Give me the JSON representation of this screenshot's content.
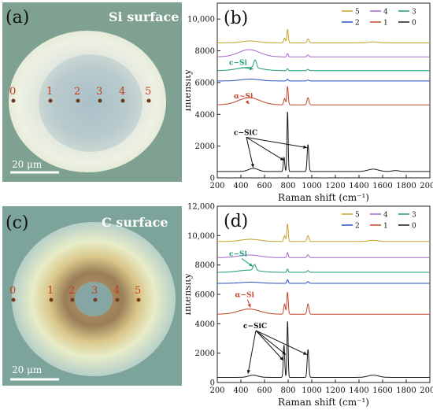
{
  "panels": {
    "a": {
      "label": "(a)",
      "title": "Si surface",
      "scale": "20 μm",
      "points": [
        "0",
        "1",
        "2",
        "3",
        "4",
        "5"
      ]
    },
    "c": {
      "label": "(c)",
      "title": "C surface",
      "scale": "20 μm",
      "points": [
        "0",
        "1",
        "2",
        "3",
        "4",
        "5"
      ]
    }
  },
  "colors": {
    "s5": "#c8a22a",
    "s4": "#a467c9",
    "s3": "#1f9e79",
    "s2": "#2a50c4",
    "s1": "#c2452a",
    "s0": "#1a1a1a"
  },
  "chart_data": [
    {
      "panel": "(b)",
      "type": "line",
      "xlabel": "Raman shift (cm⁻¹)",
      "ylabel": "Intensity",
      "xlim": [
        200,
        2000
      ],
      "ylim": [
        0,
        11000
      ],
      "xticks": [
        200,
        400,
        600,
        800,
        1000,
        1200,
        1400,
        1600,
        1800,
        2000
      ],
      "yticks": [
        0,
        2000,
        4000,
        6000,
        8000,
        10000
      ],
      "ytick_labels": [
        "0",
        "2000",
        "4000",
        "6000",
        "8000",
        "10,000"
      ],
      "legend": [
        "5",
        "4",
        "3",
        "2",
        "1",
        "0"
      ],
      "legend_location": "top-right",
      "annotations": [
        {
          "text": "c−Si",
          "x": 300,
          "y": 7100,
          "color": "#1f9e79",
          "arrow_to": [
            505,
            6850
          ]
        },
        {
          "text": "α−Si",
          "x": 340,
          "y": 5000,
          "color": "#c2452a",
          "arrow_to": [
            470,
            4650
          ]
        },
        {
          "text": "c−SiC",
          "x": 340,
          "y": 2700,
          "color": "#111111",
          "arrows_to": [
            [
              505,
              650
            ],
            [
              765,
              1100
            ],
            [
              960,
              1900
            ]
          ]
        }
      ],
      "series": [
        {
          "name": "5",
          "color": "#c8a22a",
          "baseline": 8500,
          "peaks": [
            [
              480,
              120,
              70
            ],
            [
              770,
              300,
              7
            ],
            [
              795,
              850,
              6
            ],
            [
              968,
              250,
              8
            ],
            [
              1520,
              60,
              40
            ]
          ]
        },
        {
          "name": "4",
          "color": "#a467c9",
          "baseline": 7620,
          "peaks": [
            [
              470,
              450,
              90
            ],
            [
              795,
              200,
              6
            ],
            [
              968,
              120,
              8
            ]
          ]
        },
        {
          "name": "3",
          "color": "#1f9e79",
          "baseline": 6750,
          "peaks": [
            [
              470,
              200,
              100
            ],
            [
              520,
              500,
              12
            ],
            [
              795,
              120,
              6
            ],
            [
              968,
              80,
              8
            ]
          ]
        },
        {
          "name": "2",
          "color": "#2a50c4",
          "baseline": 6100,
          "peaks": [
            [
              480,
              120,
              80
            ],
            [
              795,
              120,
              6
            ],
            [
              968,
              60,
              8
            ]
          ]
        },
        {
          "name": "1",
          "color": "#c2452a",
          "baseline": 4600,
          "peaks": [
            [
              470,
              450,
              90
            ],
            [
              770,
              400,
              7
            ],
            [
              795,
              1150,
              6
            ],
            [
              968,
              450,
              8
            ]
          ]
        },
        {
          "name": "0",
          "color": "#1a1a1a",
          "baseline": 400,
          "peaks": [
            [
              505,
              200,
              40
            ],
            [
              765,
              900,
              6
            ],
            [
              795,
              3800,
              5
            ],
            [
              968,
              1700,
              7
            ],
            [
              1520,
              150,
              45
            ],
            [
              1710,
              60,
              30
            ]
          ]
        }
      ]
    },
    {
      "panel": "(d)",
      "type": "line",
      "xlabel": "Raman shift (cm⁻¹)",
      "ylabel": "Intensity",
      "xlim": [
        200,
        2000
      ],
      "ylim": [
        0,
        12000
      ],
      "xticks": [
        200,
        400,
        600,
        800,
        1000,
        1200,
        1400,
        1600,
        1800,
        2000
      ],
      "yticks": [
        0,
        2000,
        4000,
        6000,
        8000,
        10000,
        12000
      ],
      "ytick_labels": [
        "0",
        "2000",
        "4000",
        "6000",
        "8000",
        "10,000",
        "12,000"
      ],
      "legend": [
        "5",
        "4",
        "3",
        "2",
        "1",
        "0"
      ],
      "legend_location": "top-right",
      "annotations": [
        {
          "text": "c−Si",
          "x": 300,
          "y": 8600,
          "color": "#1f9e79",
          "arrow_to": [
            500,
            7900
          ]
        },
        {
          "text": "α−Si",
          "x": 350,
          "y": 5800,
          "color": "#c2452a",
          "arrow_to": [
            480,
            5100
          ]
        },
        {
          "text": "c−SiC",
          "x": 420,
          "y": 3700,
          "color": "#111111",
          "arrows_to": [
            [
              460,
              600
            ],
            [
              760,
              1500
            ],
            [
              780,
              1900
            ],
            [
              960,
              1900
            ]
          ]
        }
      ],
      "series": [
        {
          "name": "5",
          "color": "#c8a22a",
          "baseline": 9600,
          "peaks": [
            [
              480,
              150,
              80
            ],
            [
              770,
              400,
              7
            ],
            [
              795,
              1200,
              6
            ],
            [
              968,
              400,
              8
            ],
            [
              1520,
              80,
              40
            ]
          ]
        },
        {
          "name": "4",
          "color": "#a467c9",
          "baseline": 8500,
          "peaks": [
            [
              470,
              180,
              90
            ],
            [
              795,
              350,
              6
            ],
            [
              968,
              200,
              8
            ]
          ]
        },
        {
          "name": "3",
          "color": "#1f9e79",
          "baseline": 7500,
          "peaks": [
            [
              470,
              150,
              90
            ],
            [
              515,
              400,
              12
            ],
            [
              795,
              220,
              6
            ],
            [
              968,
              120,
              8
            ]
          ]
        },
        {
          "name": "2",
          "color": "#2a50c4",
          "baseline": 6750,
          "peaks": [
            [
              480,
              80,
              80
            ],
            [
              795,
              250,
              6
            ],
            [
              968,
              120,
              8
            ]
          ]
        },
        {
          "name": "1",
          "color": "#c2452a",
          "baseline": 4650,
          "peaks": [
            [
              470,
              350,
              90
            ],
            [
              770,
              700,
              7
            ],
            [
              795,
              1500,
              6
            ],
            [
              968,
              700,
              8
            ]
          ]
        },
        {
          "name": "0",
          "color": "#1a1a1a",
          "baseline": 350,
          "peaks": [
            [
              505,
              150,
              40
            ],
            [
              765,
              2200,
              6
            ],
            [
              795,
              3850,
              5
            ],
            [
              968,
              1900,
              7
            ],
            [
              1520,
              150,
              45
            ]
          ]
        }
      ]
    }
  ]
}
